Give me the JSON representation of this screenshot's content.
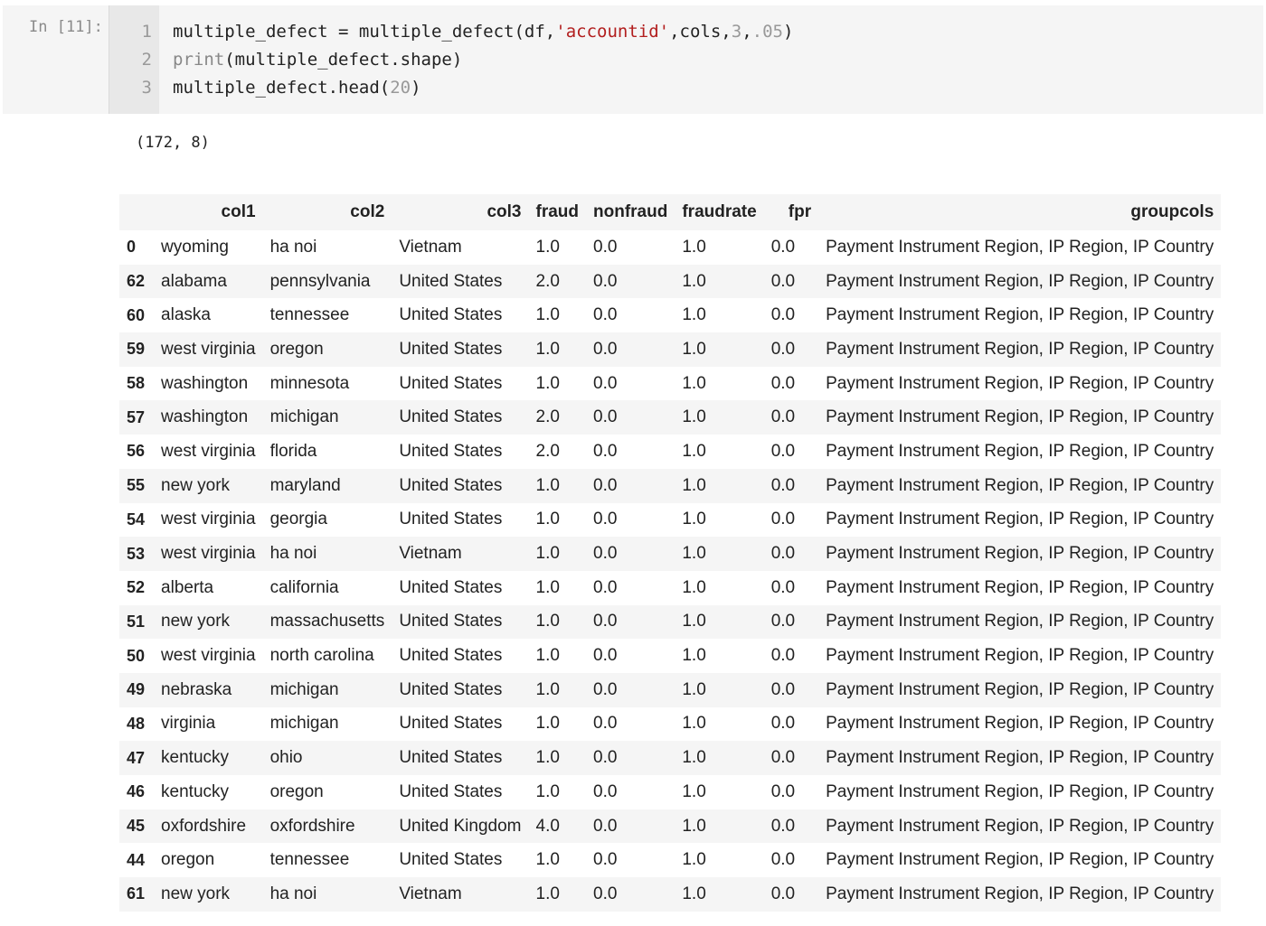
{
  "cell": {
    "prompt": "In [11]:",
    "lines": [
      {
        "no": "1",
        "parts": [
          {
            "t": "multiple_defect = multiple_defect(df,",
            "c": ""
          },
          {
            "t": "'accountid'",
            "c": "str"
          },
          {
            "t": ",cols,",
            "c": ""
          },
          {
            "t": "3",
            "c": "num"
          },
          {
            "t": ",",
            "c": ""
          },
          {
            "t": ".05",
            "c": "num"
          },
          {
            "t": ")",
            "c": ""
          }
        ]
      },
      {
        "no": "2",
        "parts": [
          {
            "t": "print",
            "c": "kw"
          },
          {
            "t": "(multiple_defect.shape)",
            "c": ""
          }
        ]
      },
      {
        "no": "3",
        "parts": [
          {
            "t": "multiple_defect.head(",
            "c": ""
          },
          {
            "t": "20",
            "c": "num"
          },
          {
            "t": ")",
            "c": ""
          }
        ]
      }
    ]
  },
  "output": {
    "shape_text": "(172, 8)"
  },
  "table": {
    "columns": [
      "",
      "col1",
      "col2",
      "col3",
      "fraud",
      "nonfraud",
      "fraudrate",
      "fpr",
      "groupcols"
    ],
    "rows": [
      [
        "0",
        "wyoming",
        "ha noi",
        "Vietnam",
        "1.0",
        "0.0",
        "1.0",
        "0.0",
        "Payment Instrument Region, IP Region, IP Country"
      ],
      [
        "62",
        "alabama",
        "pennsylvania",
        "United States",
        "2.0",
        "0.0",
        "1.0",
        "0.0",
        "Payment Instrument Region, IP Region, IP Country"
      ],
      [
        "60",
        "alaska",
        "tennessee",
        "United States",
        "1.0",
        "0.0",
        "1.0",
        "0.0",
        "Payment Instrument Region, IP Region, IP Country"
      ],
      [
        "59",
        "west virginia",
        "oregon",
        "United States",
        "1.0",
        "0.0",
        "1.0",
        "0.0",
        "Payment Instrument Region, IP Region, IP Country"
      ],
      [
        "58",
        "washington",
        "minnesota",
        "United States",
        "1.0",
        "0.0",
        "1.0",
        "0.0",
        "Payment Instrument Region, IP Region, IP Country"
      ],
      [
        "57",
        "washington",
        "michigan",
        "United States",
        "2.0",
        "0.0",
        "1.0",
        "0.0",
        "Payment Instrument Region, IP Region, IP Country"
      ],
      [
        "56",
        "west virginia",
        "florida",
        "United States",
        "2.0",
        "0.0",
        "1.0",
        "0.0",
        "Payment Instrument Region, IP Region, IP Country"
      ],
      [
        "55",
        "new york",
        "maryland",
        "United States",
        "1.0",
        "0.0",
        "1.0",
        "0.0",
        "Payment Instrument Region, IP Region, IP Country"
      ],
      [
        "54",
        "west virginia",
        "georgia",
        "United States",
        "1.0",
        "0.0",
        "1.0",
        "0.0",
        "Payment Instrument Region, IP Region, IP Country"
      ],
      [
        "53",
        "west virginia",
        "ha noi",
        "Vietnam",
        "1.0",
        "0.0",
        "1.0",
        "0.0",
        "Payment Instrument Region, IP Region, IP Country"
      ],
      [
        "52",
        "alberta",
        "california",
        "United States",
        "1.0",
        "0.0",
        "1.0",
        "0.0",
        "Payment Instrument Region, IP Region, IP Country"
      ],
      [
        "51",
        "new york",
        "massachusetts",
        "United States",
        "1.0",
        "0.0",
        "1.0",
        "0.0",
        "Payment Instrument Region, IP Region, IP Country"
      ],
      [
        "50",
        "west virginia",
        "north carolina",
        "United States",
        "1.0",
        "0.0",
        "1.0",
        "0.0",
        "Payment Instrument Region, IP Region, IP Country"
      ],
      [
        "49",
        "nebraska",
        "michigan",
        "United States",
        "1.0",
        "0.0",
        "1.0",
        "0.0",
        "Payment Instrument Region, IP Region, IP Country"
      ],
      [
        "48",
        "virginia",
        "michigan",
        "United States",
        "1.0",
        "0.0",
        "1.0",
        "0.0",
        "Payment Instrument Region, IP Region, IP Country"
      ],
      [
        "47",
        "kentucky",
        "ohio",
        "United States",
        "1.0",
        "0.0",
        "1.0",
        "0.0",
        "Payment Instrument Region, IP Region, IP Country"
      ],
      [
        "46",
        "kentucky",
        "oregon",
        "United States",
        "1.0",
        "0.0",
        "1.0",
        "0.0",
        "Payment Instrument Region, IP Region, IP Country"
      ],
      [
        "45",
        "oxfordshire",
        "oxfordshire",
        "United Kingdom",
        "4.0",
        "0.0",
        "1.0",
        "0.0",
        "Payment Instrument Region, IP Region, IP Country"
      ],
      [
        "44",
        "oregon",
        "tennessee",
        "United States",
        "1.0",
        "0.0",
        "1.0",
        "0.0",
        "Payment Instrument Region, IP Region, IP Country"
      ],
      [
        "61",
        "new york",
        "ha noi",
        "Vietnam",
        "1.0",
        "0.0",
        "1.0",
        "0.0",
        "Payment Instrument Region, IP Region, IP Country"
      ]
    ]
  }
}
